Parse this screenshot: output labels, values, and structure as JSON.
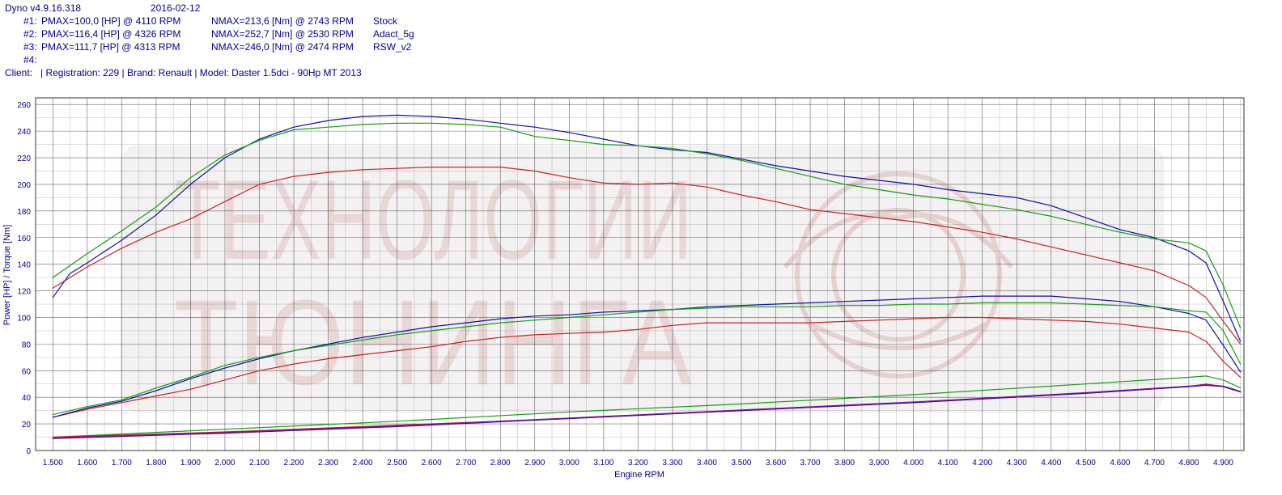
{
  "header": {
    "app_version": "Dyno v4.9.16.318",
    "date": "2016-02-12",
    "runs": [
      {
        "id": "#1:",
        "pmax": "PMAX=100,0 [HP] @ 4110 RPM",
        "nmax": "NMAX=213,6 [Nm] @ 2743 RPM",
        "name": "Stock"
      },
      {
        "id": "#2:",
        "pmax": "PMAX=116,4 [HP] @ 4326 RPM",
        "nmax": "NMAX=252,7 [Nm] @ 2530 RPM",
        "name": "Adact_5g"
      },
      {
        "id": "#3:",
        "pmax": "PMAX=111,7 [HP] @ 4313 RPM",
        "nmax": "NMAX=246,0 [Nm] @ 2474 RPM",
        "name": "RSW_v2"
      },
      {
        "id": "#4:",
        "pmax": "",
        "nmax": "",
        "name": ""
      }
    ],
    "client_line": "Client:   | Registration: 229 | Brand: Renault | Model: Daster 1.5dci - 90Hp MT 2013"
  },
  "watermark": {
    "line1": "ТЕХНОЛОГИИ",
    "line2": "ТЮНИНГА"
  },
  "colors": {
    "stock": "#cc2020",
    "adact": "#1010aa",
    "rsw": "#10a010",
    "loss": "#7a1090",
    "grid": "#333333",
    "axis_text": "#00008b"
  },
  "chart_data": {
    "type": "line",
    "title": "",
    "xlabel": "Engine RPM",
    "ylabel": "Power [HP] / Torque [Nm]",
    "xlim": [
      1450,
      4960
    ],
    "ylim": [
      0,
      265
    ],
    "x_ticks": [
      1500,
      1600,
      1700,
      1800,
      1900,
      2000,
      2100,
      2200,
      2300,
      2400,
      2500,
      2600,
      2700,
      2800,
      2900,
      3000,
      3100,
      3200,
      3300,
      3400,
      3500,
      3600,
      3700,
      3800,
      3900,
      4000,
      4100,
      4200,
      4300,
      4400,
      4500,
      4600,
      4700,
      4800,
      4900
    ],
    "x_tick_labels": [
      "1.500",
      "1.600",
      "1.700",
      "1.800",
      "1.900",
      "2.000",
      "2.100",
      "2.200",
      "2.300",
      "2.400",
      "2.500",
      "2.600",
      "2.700",
      "2.800",
      "2.900",
      "3.000",
      "3.100",
      "3.200",
      "3.300",
      "3.400",
      "3.500",
      "3.600",
      "3.700",
      "3.800",
      "3.900",
      "4.000",
      "4.100",
      "4.200",
      "4.300",
      "4.400",
      "4.500",
      "4.600",
      "4.700",
      "4.800",
      "4.900"
    ],
    "y_ticks": [
      0,
      20,
      40,
      60,
      80,
      100,
      120,
      140,
      160,
      180,
      200,
      220,
      240,
      260
    ],
    "grid": true,
    "series": [
      {
        "name": "Stock",
        "kind": "torque",
        "color": "#cc2020",
        "x": [
          1500,
          1600,
          1700,
          1800,
          1900,
          2000,
          2100,
          2200,
          2300,
          2400,
          2500,
          2600,
          2700,
          2800,
          2900,
          3000,
          3100,
          3200,
          3300,
          3400,
          3500,
          3600,
          3700,
          3800,
          3900,
          4000,
          4100,
          4200,
          4300,
          4400,
          4500,
          4600,
          4700,
          4800,
          4850,
          4900,
          4950
        ],
        "y": [
          122,
          138,
          152,
          164,
          174,
          187,
          200,
          206,
          209,
          211,
          212,
          213,
          213,
          213,
          210,
          205,
          201,
          200,
          201,
          198,
          192,
          187,
          181,
          178,
          175,
          172,
          168,
          164,
          159,
          153,
          147,
          141,
          135,
          124,
          115,
          97,
          80
        ]
      },
      {
        "name": "Adact_5g",
        "kind": "torque",
        "color": "#1010aa",
        "x": [
          1500,
          1550,
          1600,
          1700,
          1800,
          1900,
          2000,
          2100,
          2200,
          2300,
          2400,
          2500,
          2600,
          2700,
          2800,
          2900,
          3000,
          3100,
          3200,
          3300,
          3400,
          3500,
          3600,
          3700,
          3800,
          3900,
          4000,
          4100,
          4200,
          4300,
          4400,
          4500,
          4600,
          4700,
          4800,
          4850,
          4900,
          4950
        ],
        "y": [
          115,
          133,
          141,
          158,
          177,
          200,
          220,
          234,
          243,
          248,
          251,
          252,
          251,
          249,
          246,
          243,
          239,
          234,
          229,
          226,
          224,
          219,
          214,
          210,
          206,
          203,
          200,
          196,
          193,
          190,
          184,
          175,
          166,
          160,
          150,
          141,
          112,
          82
        ]
      },
      {
        "name": "RSW_v2",
        "kind": "torque",
        "color": "#10a010",
        "x": [
          1500,
          1600,
          1700,
          1800,
          1900,
          2000,
          2100,
          2200,
          2300,
          2400,
          2500,
          2600,
          2700,
          2800,
          2900,
          3000,
          3100,
          3200,
          3300,
          3400,
          3500,
          3600,
          3700,
          3800,
          3900,
          4000,
          4100,
          4200,
          4300,
          4400,
          4500,
          4600,
          4700,
          4800,
          4850,
          4900,
          4950
        ],
        "y": [
          130,
          148,
          165,
          183,
          205,
          222,
          233,
          241,
          243,
          245,
          246,
          246,
          245,
          243,
          236,
          233,
          230,
          229,
          227,
          223,
          218,
          212,
          206,
          200,
          196,
          192,
          189,
          185,
          181,
          176,
          170,
          164,
          159,
          156,
          150,
          124,
          92
        ]
      },
      {
        "name": "Stock",
        "kind": "power",
        "color": "#cc2020",
        "x": [
          1500,
          1600,
          1700,
          1800,
          1900,
          2000,
          2100,
          2200,
          2300,
          2400,
          2500,
          2600,
          2700,
          2800,
          2900,
          3000,
          3100,
          3200,
          3300,
          3400,
          3500,
          3600,
          3700,
          3800,
          3900,
          4000,
          4100,
          4200,
          4300,
          4400,
          4500,
          4600,
          4700,
          4800,
          4850,
          4900,
          4950
        ],
        "y": [
          25,
          31,
          36,
          41,
          46,
          53,
          60,
          65,
          69,
          72,
          75,
          78,
          82,
          85,
          87,
          88,
          89,
          91,
          94,
          96,
          96,
          96,
          96,
          97,
          98,
          99,
          100,
          100,
          99,
          98,
          97,
          95,
          92,
          89,
          82,
          67,
          55
        ]
      },
      {
        "name": "Adact_5g",
        "kind": "power",
        "color": "#1010aa",
        "x": [
          1500,
          1600,
          1700,
          1800,
          1900,
          2000,
          2100,
          2200,
          2300,
          2400,
          2500,
          2600,
          2700,
          2800,
          2900,
          3000,
          3100,
          3200,
          3300,
          3400,
          3500,
          3600,
          3700,
          3800,
          3900,
          4000,
          4100,
          4200,
          4300,
          4400,
          4500,
          4600,
          4700,
          4800,
          4850,
          4900,
          4950
        ],
        "y": [
          25,
          32,
          37,
          45,
          54,
          62,
          69,
          75,
          80,
          85,
          89,
          93,
          96,
          99,
          101,
          102,
          104,
          105,
          106,
          108,
          109,
          110,
          111,
          112,
          113,
          114,
          115,
          116,
          116,
          116,
          114,
          112,
          108,
          103,
          98,
          79,
          59
        ]
      },
      {
        "name": "RSW_v2",
        "kind": "power",
        "color": "#10a010",
        "x": [
          1500,
          1600,
          1700,
          1800,
          1900,
          2000,
          2100,
          2200,
          2300,
          2400,
          2500,
          2600,
          2700,
          2800,
          2900,
          3000,
          3100,
          3200,
          3300,
          3400,
          3500,
          3600,
          3700,
          3800,
          3900,
          4000,
          4100,
          4200,
          4300,
          4400,
          4500,
          4600,
          4700,
          4800,
          4850,
          4900,
          4950
        ],
        "y": [
          27,
          33,
          38,
          47,
          55,
          64,
          70,
          75,
          79,
          83,
          87,
          90,
          93,
          96,
          98,
          100,
          102,
          104,
          106,
          107,
          108,
          108,
          108,
          109,
          109,
          110,
          110,
          111,
          111,
          111,
          110,
          109,
          108,
          105,
          104,
          90,
          65
        ]
      },
      {
        "name": "RSW_v2",
        "kind": "loss",
        "color": "#10a010",
        "x": [
          1500,
          2000,
          2500,
          3000,
          3500,
          4000,
          4500,
          4800,
          4850,
          4900,
          4950
        ],
        "y": [
          10,
          16,
          22,
          29,
          35,
          42,
          50,
          55,
          56,
          53,
          47
        ]
      },
      {
        "name": "Stock",
        "kind": "loss",
        "color": "#cc2020",
        "x": [
          1500,
          2000,
          2500,
          3000,
          3500,
          4000,
          4500,
          4800,
          4850,
          4900,
          4950
        ],
        "y": [
          10,
          14,
          19,
          24,
          30,
          36,
          43,
          48,
          50,
          48,
          44
        ]
      },
      {
        "name": "Adact_5g",
        "kind": "loss",
        "color": "#1010aa",
        "x": [
          1500,
          2000,
          2500,
          3000,
          3500,
          4000,
          4500,
          4800,
          4850,
          4900,
          4950
        ],
        "y": [
          9,
          13,
          18,
          24,
          30,
          36,
          43,
          48,
          49,
          48,
          44
        ]
      }
    ]
  }
}
